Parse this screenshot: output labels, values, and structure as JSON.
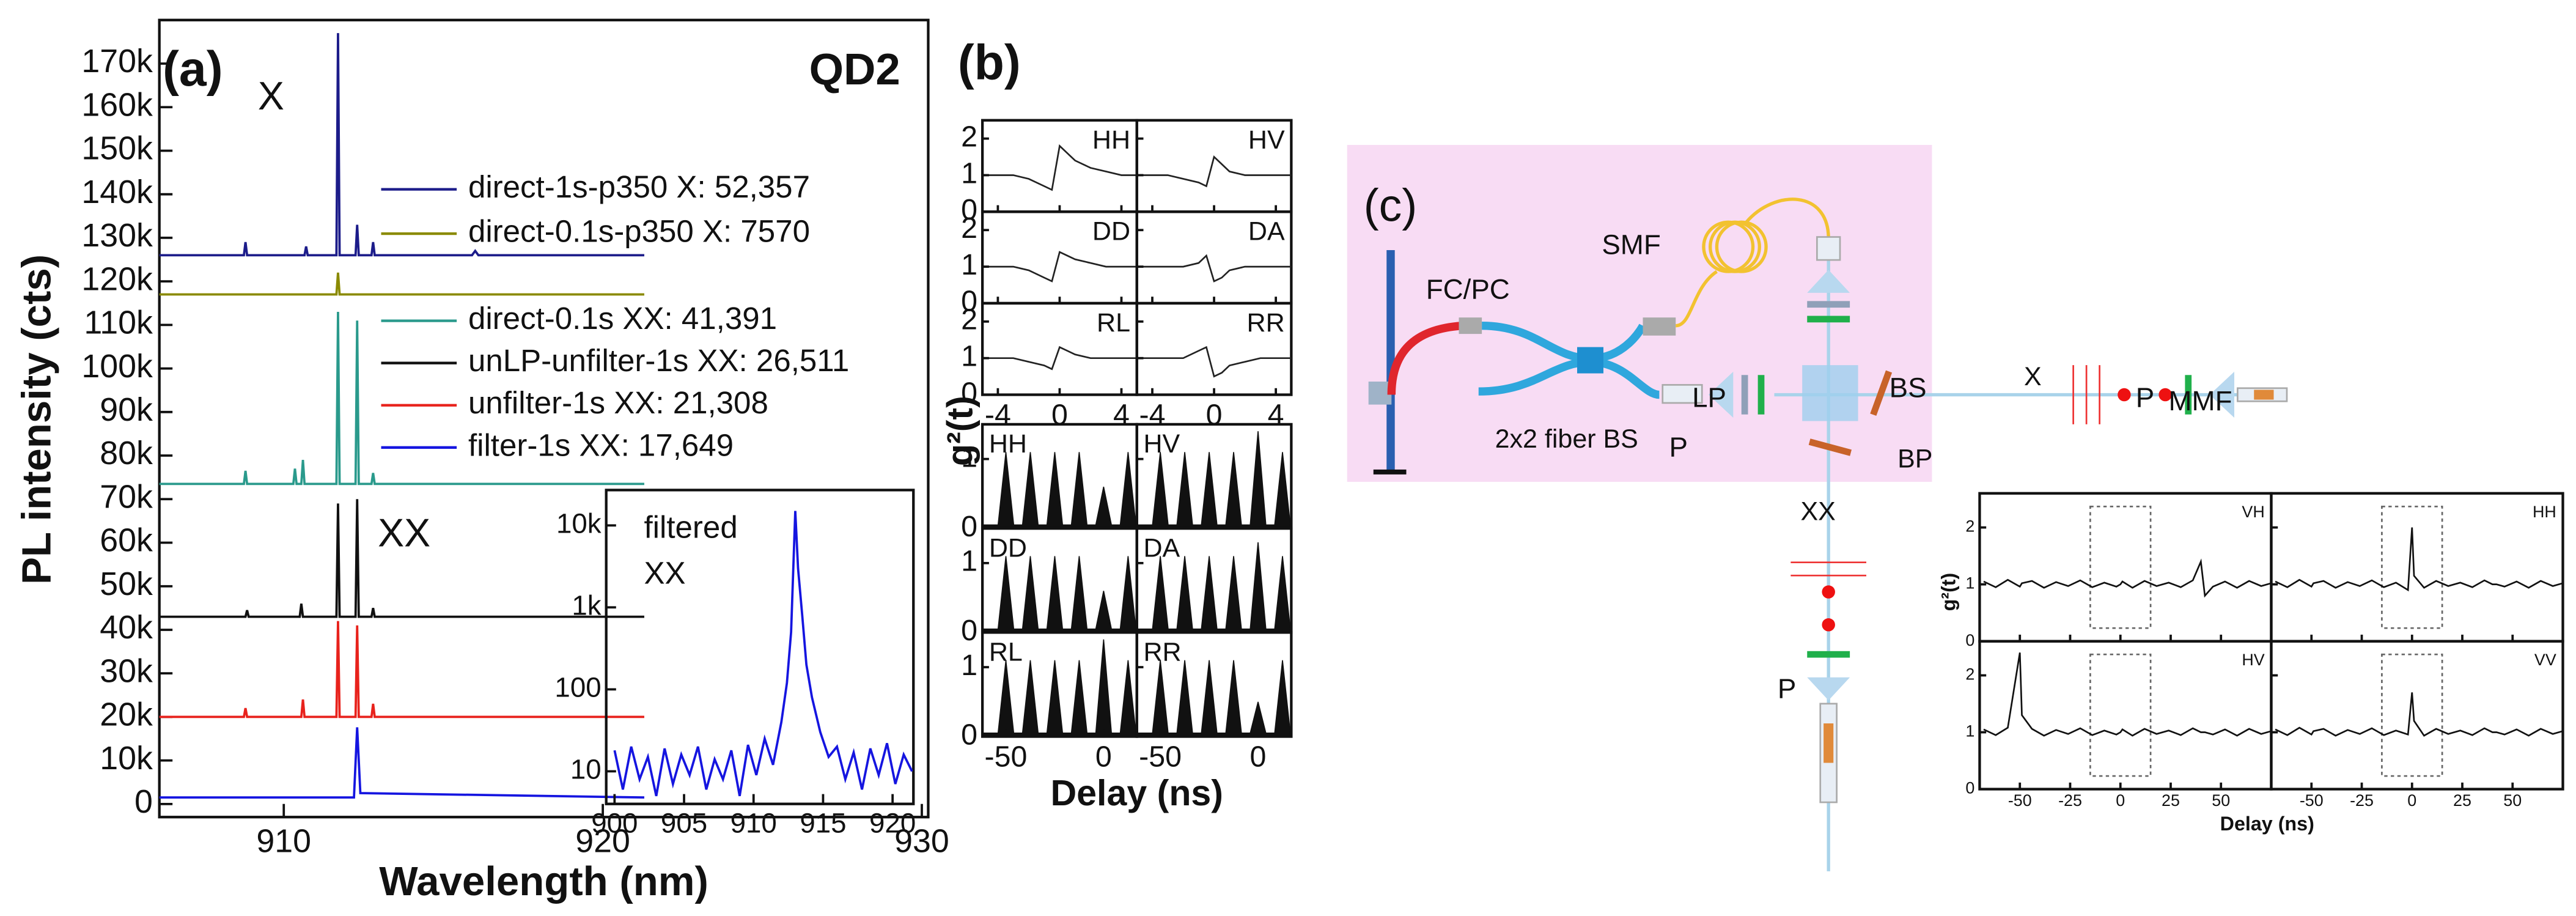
{
  "chart_data": [
    {
      "type": "line",
      "label": "(a)",
      "title": "QD2",
      "xlabel": "Wavelength (nm)",
      "ylabel": "PL intensity (cts)",
      "annotations": [
        "X",
        "XX"
      ],
      "xlim": [
        906.1,
        930.2
      ],
      "xticks": [
        910,
        920,
        930
      ],
      "ylim": [
        -3000,
        180000
      ],
      "yticks": [
        0,
        {
          "value": 10000,
          "label": "10k"
        },
        {
          "value": 20000,
          "label": "20k"
        },
        {
          "value": 30000,
          "label": "30k"
        },
        {
          "value": 40000,
          "label": "40k"
        },
        {
          "value": 50000,
          "label": "50k"
        },
        {
          "value": 60000,
          "label": "60k"
        },
        {
          "value": 70000,
          "label": "70k"
        },
        {
          "value": 80000,
          "label": "80k"
        },
        {
          "value": 90000,
          "label": "90k"
        },
        {
          "value": 100000,
          "label": "100k"
        },
        {
          "value": 110000,
          "label": "110k"
        },
        {
          "value": 120000,
          "label": "120k"
        },
        {
          "value": 130000,
          "label": "130k"
        },
        {
          "value": 140000,
          "label": "140k"
        },
        {
          "value": 150000,
          "label": "150k"
        },
        {
          "value": 160000,
          "label": "160k"
        },
        {
          "value": 170000,
          "label": "170k"
        }
      ],
      "series": [
        {
          "name": "direct-1s-p350 X: 52,357",
          "color": "#1c1c8a",
          "x": [
            906.1,
            908.75,
            908.8,
            908.85,
            910.65,
            910.7,
            910.75,
            911.65,
            911.7,
            911.75,
            912.25,
            912.3,
            912.35,
            912.75,
            912.8,
            912.85,
            915.9,
            916,
            916.1,
            921.3
          ],
          "values": [
            126000,
            126000,
            129000,
            126000,
            126000,
            128000,
            126000,
            126000,
            177000,
            126000,
            126000,
            133000,
            126000,
            126000,
            129000,
            126000,
            126000,
            127000,
            126000,
            126000
          ]
        },
        {
          "name": "direct-0.1s-p350 X: 7570",
          "color": "#8a8a00",
          "x": [
            906.1,
            911.65,
            911.7,
            911.75,
            921.3
          ],
          "values": [
            117000,
            117000,
            122000,
            117000,
            117000
          ]
        },
        {
          "name": "direct-0.1s XX: 41,391",
          "color": "#2a9a8c",
          "x": [
            906.1,
            908.75,
            908.8,
            908.85,
            910.3,
            910.35,
            910.4,
            910.55,
            910.6,
            910.65,
            911.65,
            911.7,
            911.75,
            912.25,
            912.3,
            912.35,
            912.75,
            912.8,
            912.85,
            921.3
          ],
          "values": [
            73500,
            73500,
            76500,
            73500,
            73500,
            77000,
            73500,
            73500,
            79000,
            73500,
            73500,
            113000,
            73500,
            73500,
            111000,
            73500,
            73500,
            76000,
            73500,
            73500
          ]
        },
        {
          "name": "unLP-unfilter-1s XX: 26,511",
          "color": "#111111",
          "x": [
            906.1,
            908.8,
            908.85,
            908.9,
            910.5,
            910.55,
            910.6,
            911.65,
            911.7,
            911.75,
            912.25,
            912.3,
            912.35,
            912.75,
            912.8,
            912.85,
            921.3
          ],
          "values": [
            43000,
            43000,
            44500,
            43000,
            43000,
            46000,
            43000,
            43000,
            69000,
            43000,
            43000,
            70000,
            43000,
            43000,
            45000,
            43000,
            43000
          ]
        },
        {
          "name": "unfilter-1s XX: 21,308",
          "color": "#e8221c",
          "x": [
            906.1,
            908.75,
            908.8,
            908.85,
            910.55,
            910.6,
            910.65,
            911.65,
            911.7,
            911.75,
            912.25,
            912.3,
            912.35,
            912.75,
            912.8,
            912.85,
            921.3
          ],
          "values": [
            20000,
            20000,
            22000,
            20000,
            20000,
            24000,
            20000,
            20000,
            42000,
            20000,
            20000,
            41000,
            20000,
            20000,
            23000,
            20000,
            20000
          ]
        },
        {
          "name": "filter-1s XX: 17,649",
          "color": "#1515e0",
          "x": [
            906.1,
            912.2,
            912.3,
            912.4,
            921.3
          ],
          "values": [
            1500,
            1500,
            17600,
            2500,
            1500
          ]
        }
      ]
    },
    {
      "type": "line",
      "log_y": true,
      "annotations": [
        "filtered",
        "XX"
      ],
      "color": "#1515e0",
      "xlim": [
        899.4,
        921.5
      ],
      "xticks": [
        900,
        905,
        910,
        915,
        920
      ],
      "ylim": [
        4,
        27000
      ],
      "yticks": [
        10,
        100,
        {
          "value": 1000,
          "label": "1k"
        },
        {
          "value": 10000,
          "label": "10k"
        }
      ],
      "x": [
        900,
        900.6,
        901.2,
        901.8,
        902.4,
        903,
        903.6,
        904.2,
        904.8,
        905.4,
        906,
        906.6,
        907.2,
        907.8,
        908.4,
        909,
        909.6,
        910.2,
        910.8,
        911.4,
        912,
        912.4,
        912.7,
        913,
        913.2,
        913.5,
        913.8,
        914.2,
        914.8,
        915.4,
        916,
        916.6,
        917.2,
        917.8,
        918.4,
        919,
        919.6,
        920.2,
        920.8,
        921.4
      ],
      "values": [
        18,
        6,
        20,
        8,
        15,
        5,
        19,
        7,
        16,
        9,
        20,
        6,
        14,
        8,
        18,
        5,
        21,
        9,
        25,
        12,
        40,
        120,
        500,
        15000,
        3000,
        800,
        200,
        80,
        30,
        15,
        20,
        8,
        17,
        6,
        19,
        9,
        22,
        7,
        16,
        10
      ]
    },
    {
      "type": "line",
      "label": "(b)",
      "ylabel": "g²(t)",
      "color": "#222222",
      "xlim": [
        -5,
        5
      ],
      "xticks": [
        -4,
        0,
        4
      ],
      "ylim": [
        0,
        2.5
      ],
      "yticks": [
        0,
        1,
        2
      ],
      "x": [
        -5,
        -4,
        -3,
        -2,
        -1,
        -0.5,
        0,
        0.5,
        1,
        2,
        3,
        4,
        5
      ],
      "panels": [
        {
          "name": "HH",
          "values": [
            1,
            1,
            1,
            0.9,
            0.7,
            0.6,
            1.8,
            1.6,
            1.4,
            1.2,
            1.1,
            1,
            1
          ]
        },
        {
          "name": "HV",
          "values": [
            1,
            1,
            1,
            0.9,
            0.8,
            0.7,
            1.5,
            1.3,
            1.1,
            1,
            1,
            1,
            1
          ]
        },
        {
          "name": "DD",
          "values": [
            1,
            1,
            1,
            0.9,
            0.7,
            0.6,
            1.4,
            1.3,
            1.2,
            1.1,
            1,
            1,
            1
          ]
        },
        {
          "name": "DA",
          "values": [
            1,
            1,
            1,
            1,
            1.1,
            1.3,
            0.6,
            0.7,
            0.9,
            1,
            1,
            1,
            1
          ]
        },
        {
          "name": "RL",
          "values": [
            1,
            1,
            1,
            0.9,
            0.8,
            0.7,
            1.3,
            1.2,
            1.1,
            1,
            1,
            1,
            1
          ]
        },
        {
          "name": "RR",
          "values": [
            1,
            1,
            1,
            1,
            1.2,
            1.3,
            0.5,
            0.6,
            0.8,
            0.9,
            1,
            1,
            1
          ]
        }
      ]
    },
    {
      "type": "area",
      "xlabel": "Delay (ns)",
      "color": "#111111",
      "xlim": [
        -62,
        17
      ],
      "xticks": [
        -50,
        0
      ],
      "ylim": [
        0,
        1.5
      ],
      "yticks": [
        0,
        1
      ],
      "x": [
        -62,
        -54,
        -50,
        -46,
        -41.5,
        -37.5,
        -33.5,
        -29,
        -25,
        -21,
        -16.5,
        -12.5,
        -8.5,
        -4,
        0,
        4,
        8.5,
        12.5,
        16.5
      ],
      "panels": [
        {
          "name": "HH",
          "values": [
            0.05,
            0.05,
            1.1,
            0.05,
            0.05,
            1.1,
            0.05,
            0.05,
            1.1,
            0.05,
            0.05,
            1.1,
            0.05,
            0.05,
            0.6,
            0.05,
            0.05,
            1.1,
            0.05
          ]
        },
        {
          "name": "HV",
          "values": [
            0.05,
            0.05,
            1.1,
            0.05,
            0.05,
            1.1,
            0.05,
            0.05,
            1.1,
            0.05,
            0.05,
            1.1,
            0.05,
            0.05,
            1.4,
            0.05,
            0.05,
            1.1,
            0.05
          ]
        },
        {
          "name": "DD",
          "values": [
            0.05,
            0.05,
            1.1,
            0.05,
            0.05,
            1.1,
            0.05,
            0.05,
            1.1,
            0.05,
            0.05,
            1.1,
            0.05,
            0.05,
            0.6,
            0.05,
            0.05,
            1.1,
            0.05
          ]
        },
        {
          "name": "DA",
          "values": [
            0.05,
            0.05,
            1.1,
            0.05,
            0.05,
            1.1,
            0.05,
            0.05,
            1.1,
            0.05,
            0.05,
            1.1,
            0.05,
            0.05,
            1.3,
            0.05,
            0.05,
            1.1,
            0.05
          ]
        },
        {
          "name": "RL",
          "values": [
            0.05,
            0.05,
            1.1,
            0.05,
            0.05,
            1.1,
            0.05,
            0.05,
            1.1,
            0.05,
            0.05,
            1.1,
            0.05,
            0.05,
            1.4,
            0.05,
            0.05,
            1.1,
            0.05
          ]
        },
        {
          "name": "RR",
          "values": [
            0.05,
            0.05,
            1.1,
            0.05,
            0.05,
            1.1,
            0.05,
            0.05,
            1.1,
            0.05,
            0.05,
            1.1,
            0.05,
            0.05,
            0.5,
            0.05,
            0.05,
            1.1,
            0.05
          ]
        }
      ]
    },
    {
      "type": "line",
      "xlabel": "Delay (ns)",
      "ylabel": "g²(t)",
      "color": "#111111",
      "xlim": [
        -70,
        75
      ],
      "xticks": [
        -50,
        -25,
        0,
        25,
        50
      ],
      "ylim": [
        0,
        2.6
      ],
      "yticks": [
        0,
        1,
        2
      ],
      "window": [
        -15,
        15
      ],
      "x": [
        -68,
        -62,
        -56,
        -50,
        -49,
        -44,
        -38,
        -32,
        -26,
        -20,
        -14,
        -8,
        -2,
        0,
        1,
        6,
        12,
        18,
        24,
        30,
        36,
        40,
        42,
        46,
        52,
        58,
        64,
        70,
        75
      ],
      "panels": [
        {
          "name": "VH",
          "values": [
            1.05,
            0.95,
            1.08,
            0.96,
            1.02,
            1.06,
            0.94,
            1.04,
            0.97,
            1.07,
            0.95,
            1.03,
            0.96,
            1.0,
            1.05,
            0.94,
            1.06,
            0.97,
            1.03,
            0.95,
            1.07,
            1.4,
            0.8,
            0.96,
            1.05,
            0.94,
            1.06,
            0.97,
            1.02
          ]
        },
        {
          "name": "HH",
          "values": [
            1.05,
            0.95,
            1.08,
            0.96,
            1.02,
            1.06,
            0.94,
            1.04,
            0.97,
            1.07,
            0.95,
            1.03,
            0.9,
            2.0,
            1.15,
            0.94,
            1.06,
            0.97,
            1.03,
            0.95,
            1.07,
            1.0,
            1.0,
            0.96,
            1.05,
            0.94,
            1.06,
            0.97,
            1.02
          ]
        },
        {
          "name": "HV",
          "values": [
            1.05,
            0.95,
            1.08,
            2.4,
            1.3,
            1.06,
            0.94,
            1.04,
            0.97,
            1.07,
            0.95,
            1.03,
            0.96,
            1.0,
            1.05,
            0.94,
            1.06,
            0.97,
            1.03,
            0.95,
            1.07,
            1.0,
            1.0,
            0.96,
            1.05,
            0.94,
            1.06,
            0.97,
            1.02
          ]
        },
        {
          "name": "VV",
          "values": [
            1.05,
            0.95,
            1.08,
            0.96,
            1.02,
            1.06,
            0.94,
            1.04,
            0.97,
            1.07,
            0.95,
            1.03,
            0.96,
            1.7,
            1.2,
            0.94,
            1.06,
            0.97,
            1.03,
            0.95,
            1.07,
            1.0,
            1.0,
            0.96,
            1.05,
            0.94,
            1.06,
            0.97,
            1.02
          ]
        }
      ]
    }
  ],
  "diagram": {
    "label": "(c)",
    "labels": [
      "FC/PC",
      "SMF",
      "LP",
      "BS",
      "X",
      "P",
      "MMF",
      "2x2 fiber BS",
      "P",
      "BP",
      "XX",
      "P"
    ]
  }
}
